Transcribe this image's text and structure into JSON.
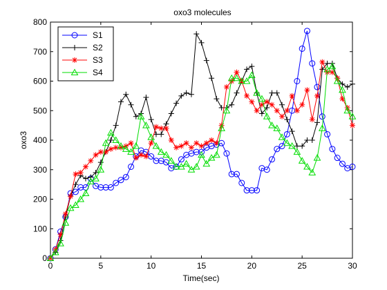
{
  "chart_data": {
    "type": "line",
    "title": "oxo3 molecules",
    "xlabel": "Time(sec)",
    "ylabel": "oxo3",
    "xlim": [
      0,
      30
    ],
    "ylim": [
      0,
      800
    ],
    "xticks": [
      0,
      5,
      10,
      15,
      20,
      25,
      30
    ],
    "yticks": [
      0,
      100,
      200,
      300,
      400,
      500,
      600,
      700,
      800
    ],
    "grid": false,
    "legend_position": "top-left",
    "series": [
      {
        "name": "S1",
        "color": "#0000ff",
        "marker": "circle",
        "x": [
          0,
          0.5,
          1,
          1.5,
          2,
          2.5,
          3,
          3.5,
          4,
          4.5,
          5,
          5.5,
          6,
          6.5,
          7,
          7.5,
          8,
          8.5,
          9,
          9.5,
          10,
          10.5,
          11,
          11.5,
          12,
          12.5,
          13,
          13.5,
          14,
          14.5,
          15,
          15.5,
          16,
          16.5,
          17,
          17.5,
          18,
          18.5,
          19,
          19.5,
          20,
          20.5,
          21,
          21.5,
          22,
          22.5,
          23,
          23.5,
          24,
          24.5,
          25,
          25.5,
          26,
          26.5,
          27,
          27.5,
          28,
          28.5,
          29,
          29.5,
          30
        ],
        "y": [
          0,
          30,
          90,
          140,
          220,
          225,
          240,
          240,
          270,
          245,
          240,
          240,
          240,
          255,
          265,
          275,
          310,
          345,
          365,
          360,
          345,
          330,
          330,
          325,
          305,
          310,
          335,
          350,
          355,
          360,
          360,
          375,
          380,
          385,
          390,
          355,
          285,
          285,
          255,
          230,
          230,
          230,
          305,
          300,
          335,
          370,
          380,
          420,
          500,
          600,
          710,
          770,
          660,
          580,
          480,
          420,
          370,
          340,
          320,
          305,
          310
        ]
      },
      {
        "name": "S2",
        "color": "#000000",
        "marker": "plus",
        "x": [
          0,
          0.5,
          1,
          1.5,
          2,
          2.5,
          3,
          3.5,
          4,
          4.5,
          5,
          5.5,
          6,
          6.5,
          7,
          7.5,
          8,
          8.5,
          9,
          9.5,
          10,
          10.5,
          11,
          11.5,
          12,
          12.5,
          13,
          13.5,
          14,
          14.5,
          15,
          15.5,
          16,
          16.5,
          17,
          17.5,
          18,
          18.5,
          19,
          19.5,
          20,
          20.5,
          21,
          21.5,
          22,
          22.5,
          23,
          23.5,
          24,
          24.5,
          25,
          25.5,
          26,
          26.5,
          27,
          27.5,
          28,
          28.5,
          29,
          29.5,
          30
        ],
        "y": [
          0,
          20,
          60,
          140,
          210,
          250,
          280,
          270,
          275,
          290,
          325,
          360,
          400,
          450,
          530,
          555,
          520,
          480,
          490,
          545,
          470,
          420,
          420,
          455,
          490,
          525,
          550,
          560,
          555,
          760,
          730,
          670,
          610,
          540,
          510,
          510,
          520,
          560,
          600,
          640,
          650,
          560,
          490,
          510,
          560,
          560,
          520,
          470,
          430,
          380,
          380,
          400,
          400,
          460,
          640,
          660,
          660,
          610,
          590,
          580,
          590
        ]
      },
      {
        "name": "S3",
        "color": "#ff0000",
        "marker": "star",
        "x": [
          0,
          0.5,
          1,
          1.5,
          2,
          2.5,
          3,
          3.5,
          4,
          4.5,
          5,
          5.5,
          6,
          6.5,
          7,
          7.5,
          8,
          8.5,
          9,
          9.5,
          10,
          10.5,
          11,
          11.5,
          12,
          12.5,
          13,
          13.5,
          14,
          14.5,
          15,
          15.5,
          16,
          16.5,
          17,
          17.5,
          18,
          18.5,
          19,
          19.5,
          20,
          20.5,
          21,
          21.5,
          22,
          22.5,
          23,
          23.5,
          24,
          24.5,
          25,
          25.5,
          26,
          26.5,
          27,
          27.5,
          28,
          28.5,
          29,
          29.5,
          30
        ],
        "y": [
          0,
          30,
          80,
          150,
          210,
          285,
          290,
          310,
          330,
          350,
          360,
          360,
          370,
          375,
          375,
          380,
          390,
          340,
          350,
          345,
          390,
          445,
          440,
          440,
          400,
          375,
          380,
          390,
          375,
          390,
          380,
          390,
          400,
          390,
          450,
          580,
          600,
          630,
          600,
          550,
          530,
          500,
          520,
          530,
          520,
          500,
          480,
          500,
          550,
          500,
          520,
          570,
          470,
          550,
          665,
          630,
          630,
          610,
          540,
          510,
          450
        ]
      },
      {
        "name": "S4",
        "color": "#00dd00",
        "marker": "triangle",
        "x": [
          0,
          0.5,
          1,
          1.5,
          2,
          2.5,
          3,
          3.5,
          4,
          4.5,
          5,
          5.5,
          6,
          6.5,
          7,
          7.5,
          8,
          8.5,
          9,
          9.5,
          10,
          10.5,
          11,
          11.5,
          12,
          12.5,
          13,
          13.5,
          14,
          14.5,
          15,
          15.5,
          16,
          16.5,
          17,
          17.5,
          18,
          18.5,
          19,
          19.5,
          20,
          20.5,
          21,
          21.5,
          22,
          22.5,
          23,
          23.5,
          24,
          24.5,
          25,
          25.5,
          26,
          26.5,
          27,
          27.5,
          28,
          28.5,
          29,
          29.5,
          30
        ],
        "y": [
          0,
          20,
          50,
          120,
          170,
          180,
          200,
          220,
          260,
          270,
          300,
          390,
          425,
          400,
          380,
          370,
          360,
          380,
          480,
          450,
          410,
          380,
          360,
          350,
          330,
          310,
          310,
          320,
          300,
          310,
          350,
          320,
          340,
          350,
          440,
          500,
          610,
          610,
          600,
          600,
          620,
          560,
          540,
          480,
          450,
          440,
          410,
          390,
          380,
          360,
          330,
          310,
          290,
          340,
          440,
          640,
          650,
          600,
          570,
          500,
          480
        ]
      }
    ]
  }
}
